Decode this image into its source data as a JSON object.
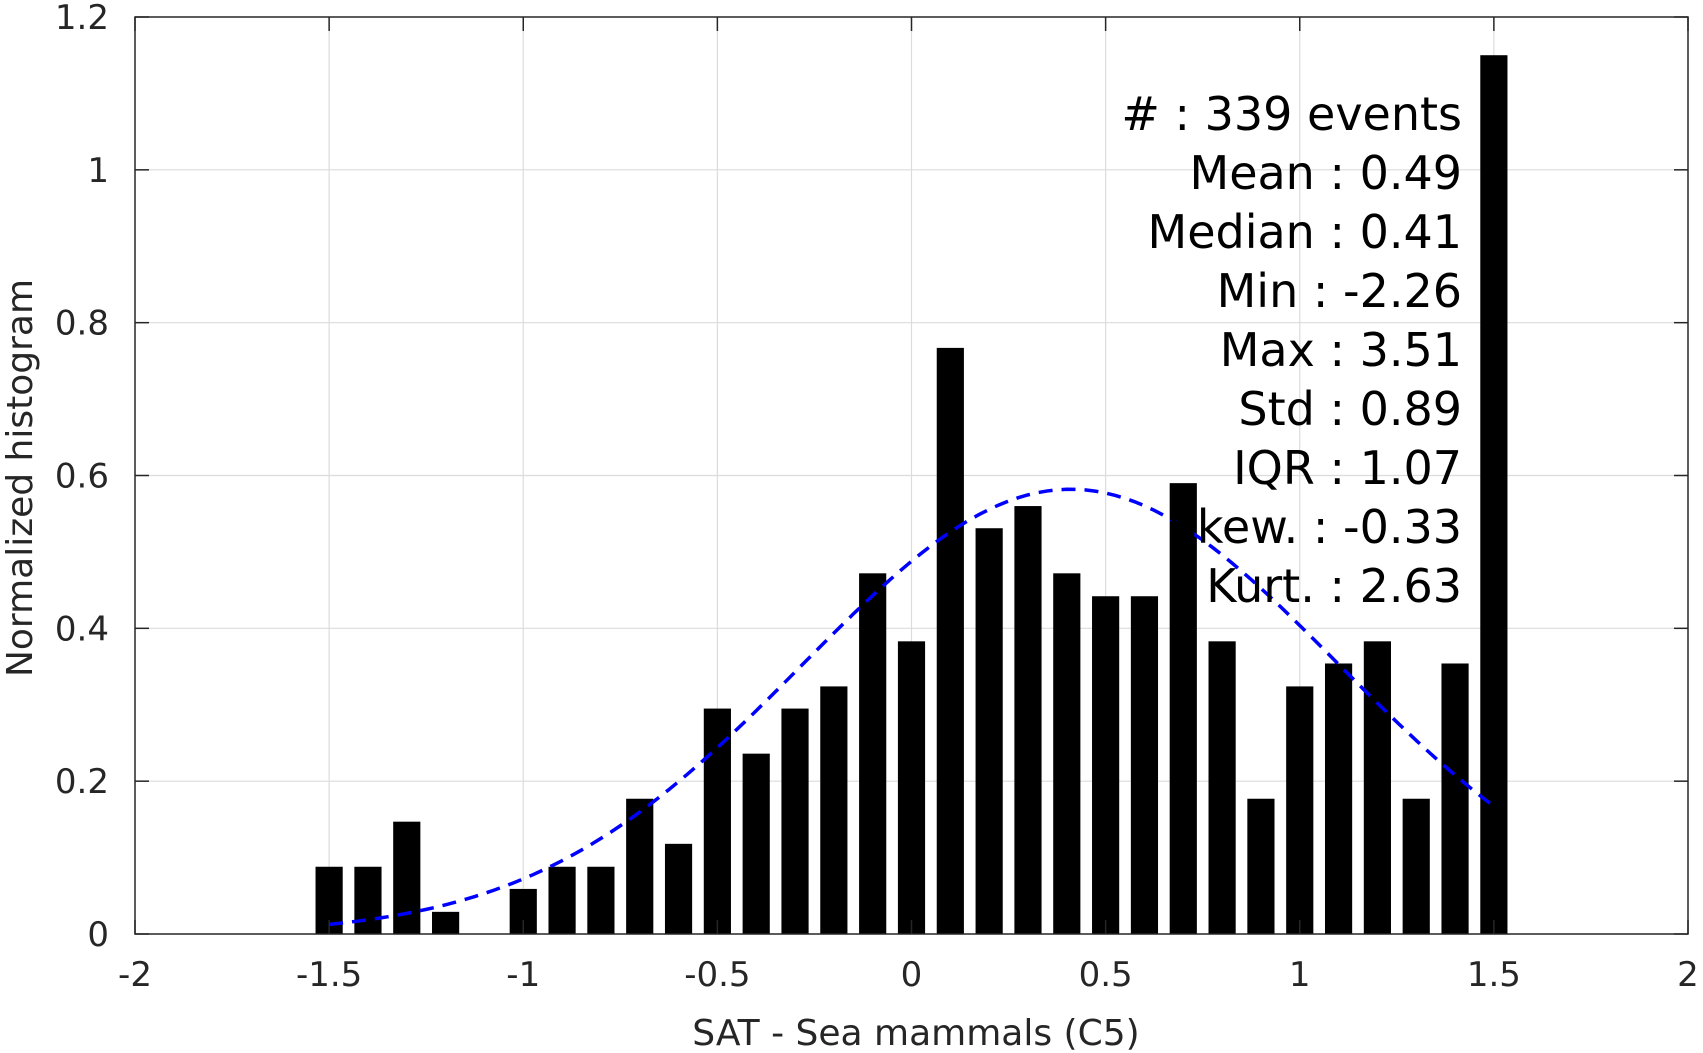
{
  "chart_data": {
    "type": "bar",
    "title": "",
    "xlabel": "SAT - Sea mammals  (C5)",
    "ylabel": "Normalized histogram",
    "xlim": [
      -2,
      2
    ],
    "ylim": [
      0,
      1.2
    ],
    "grid": true,
    "x_ticks": [
      "-2",
      "-1.5",
      "-1",
      "-0.5",
      "0",
      "0.5",
      "1",
      "1.5",
      "2"
    ],
    "x_tick_values": [
      -2,
      -1.5,
      -1,
      -0.5,
      0,
      0.5,
      1,
      1.5,
      2
    ],
    "y_ticks": [
      "0",
      "0.2",
      "0.4",
      "0.6",
      "0.8",
      "1",
      "1.2"
    ],
    "y_tick_values": [
      0,
      0.2,
      0.4,
      0.6,
      0.8,
      1.0,
      1.2
    ],
    "bar_color": "#000000",
    "bar_width": 0.07,
    "bars": {
      "x": [
        -1.5,
        -1.4,
        -1.3,
        -1.2,
        -1.1,
        -1.0,
        -0.9,
        -0.8,
        -0.7,
        -0.6,
        -0.5,
        -0.4,
        -0.3,
        -0.2,
        -0.1,
        0.0,
        0.1,
        0.2,
        0.3,
        0.4,
        0.5,
        0.6,
        0.7,
        0.8,
        0.9,
        1.0,
        1.1,
        1.2,
        1.3,
        1.4,
        1.5
      ],
      "values": [
        0.088,
        0.088,
        0.147,
        0.029,
        0.0,
        0.059,
        0.088,
        0.088,
        0.177,
        0.118,
        0.295,
        0.236,
        0.295,
        0.324,
        0.472,
        0.383,
        0.767,
        0.531,
        0.56,
        0.472,
        0.442,
        0.442,
        0.59,
        0.383,
        0.177,
        0.324,
        0.354,
        0.383,
        0.177,
        0.354,
        1.15
      ]
    },
    "fit_curve": {
      "style": "dashed",
      "color": "#0000ff",
      "mean": 0.41,
      "std": 0.69,
      "peak": 0.582,
      "x_range": [
        -1.5,
        1.5
      ]
    },
    "stats": [
      {
        "label": "#  ",
        "value": ": 339 events"
      },
      {
        "label": "Mean ",
        "value": ": 0.49"
      },
      {
        "label": "Median ",
        "value": ": 0.41"
      },
      {
        "label": "Min ",
        "value": ": -2.26"
      },
      {
        "label": "Max ",
        "value": ": 3.51"
      },
      {
        "label": "Std ",
        "value": ": 0.89"
      },
      {
        "label": "IQR ",
        "value": ": 1.07"
      },
      {
        "label": "Skew. ",
        "value": ": -0.33"
      },
      {
        "label": "Kurt. ",
        "value": ": 2.63"
      }
    ]
  }
}
